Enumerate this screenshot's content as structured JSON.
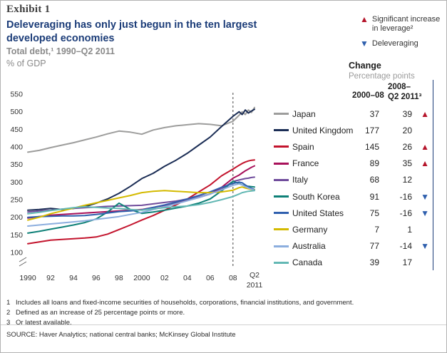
{
  "header": {
    "exhibit": "Exhibit 1",
    "title": "Deleveraging has only just begun in the ten largest developed economies",
    "subtitle1": "Total debt,¹ 1990–Q2 2011",
    "subtitle2": "% of GDP"
  },
  "marker_legend": {
    "increase": "Significant increase in leverage²",
    "deleveraging": "Deleveraging",
    "increase_color": "#b5152b",
    "deleveraging_color": "#2e5fad"
  },
  "change_table": {
    "title": "Change",
    "subtitle": "Percentage points",
    "col1": "2000–08",
    "col2_line1": "2008–",
    "col2_line2": "Q2 2011³",
    "rows": [
      {
        "country": "Japan",
        "change_2000_08": "37",
        "change_2008_q2_2011": "39",
        "marker": "up"
      },
      {
        "country": "United Kingdom",
        "change_2000_08": "177",
        "change_2008_q2_2011": "20",
        "marker": ""
      },
      {
        "country": "Spain",
        "change_2000_08": "145",
        "change_2008_q2_2011": "26",
        "marker": "up"
      },
      {
        "country": "France",
        "change_2000_08": "89",
        "change_2008_q2_2011": "35",
        "marker": "up"
      },
      {
        "country": "Italy",
        "change_2000_08": "68",
        "change_2008_q2_2011": "12",
        "marker": ""
      },
      {
        "country": "South Korea",
        "change_2000_08": "91",
        "change_2008_q2_2011": "-16",
        "marker": "down"
      },
      {
        "country": "United States",
        "change_2000_08": "75",
        "change_2008_q2_2011": "-16",
        "marker": "down"
      },
      {
        "country": "Germany",
        "change_2000_08": "7",
        "change_2008_q2_2011": "1",
        "marker": ""
      },
      {
        "country": "Australia",
        "change_2000_08": "77",
        "change_2008_q2_2011": "-14",
        "marker": "down"
      },
      {
        "country": "Canada",
        "change_2000_08": "39",
        "change_2008_q2_2011": "17",
        "marker": ""
      }
    ]
  },
  "chart_data": {
    "type": "line",
    "title": "Total debt, 1990–Q2 2011, % of GDP",
    "ylabel": "% of GDP",
    "ylim": [
      100,
      550
    ],
    "y_ticks": [
      100,
      150,
      200,
      250,
      300,
      350,
      400,
      450,
      500,
      550
    ],
    "axis_break_low": true,
    "grid": false,
    "dashed_line_x": 2008,
    "xlim": [
      1990,
      2011.5
    ],
    "x": [
      1990,
      1991,
      1992,
      1993,
      1994,
      1995,
      1996,
      1997,
      1998,
      1999,
      2000,
      2001,
      2002,
      2003,
      2004,
      2005,
      2006,
      2007,
      2008,
      2009,
      2009.5,
      2010,
      2010.5,
      2011,
      2011.5
    ],
    "x_ticks": [
      {
        "x": 1990,
        "label": "1990"
      },
      {
        "x": 1992,
        "label": "92"
      },
      {
        "x": 1994,
        "label": "94"
      },
      {
        "x": 1996,
        "label": "96"
      },
      {
        "x": 1998,
        "label": "98"
      },
      {
        "x": 2000,
        "label": "2000"
      },
      {
        "x": 2002,
        "label": "02"
      },
      {
        "x": 2004,
        "label": "04"
      },
      {
        "x": 2006,
        "label": "06"
      },
      {
        "x": 2008,
        "label": "08"
      },
      {
        "x": 2011.5,
        "label": "Q2",
        "label2": "2011"
      }
    ],
    "series": [
      {
        "name": "Japan",
        "color": "#9d9d9c",
        "values": [
          385,
          390,
          398,
          405,
          412,
          420,
          428,
          437,
          445,
          442,
          436,
          448,
          455,
          460,
          463,
          466,
          464,
          460,
          473,
          490,
          500,
          492,
          505,
          498,
          512
        ]
      },
      {
        "name": "United Kingdom",
        "color": "#1b2d55",
        "values": [
          220,
          222,
          225,
          222,
          225,
          230,
          240,
          252,
          268,
          288,
          310,
          325,
          345,
          362,
          382,
          405,
          428,
          458,
          487,
          500,
          492,
          505,
          496,
          502,
          507
        ]
      },
      {
        "name": "Spain",
        "color": "#c3142d",
        "values": [
          125,
          130,
          135,
          137,
          139,
          141,
          144,
          152,
          165,
          178,
          192,
          205,
          220,
          235,
          252,
          272,
          292,
          318,
          337,
          348,
          353,
          357,
          360,
          362,
          363
        ]
      },
      {
        "name": "France",
        "color": "#a8115a",
        "values": [
          198,
          202,
          206,
          208,
          210,
          212,
          214,
          216,
          218,
          220,
          222,
          228,
          234,
          240,
          248,
          256,
          266,
          285,
          311,
          320,
          326,
          332,
          337,
          342,
          346
        ]
      },
      {
        "name": "Italy",
        "color": "#6f4b9b",
        "values": [
          215,
          218,
          220,
          223,
          225,
          227,
          229,
          231,
          232,
          233,
          234,
          238,
          242,
          246,
          252,
          258,
          266,
          280,
          302,
          306,
          308,
          310,
          311,
          313,
          314
        ]
      },
      {
        "name": "South Korea",
        "color": "#0e8077",
        "values": [
          155,
          160,
          166,
          172,
          178,
          185,
          195,
          215,
          240,
          222,
          211,
          215,
          220,
          226,
          232,
          240,
          252,
          275,
          302,
          296,
          292,
          290,
          288,
          287,
          286
        ]
      },
      {
        "name": "United States",
        "color": "#2f5fae",
        "values": [
          200,
          202,
          203,
          204,
          204,
          205,
          208,
          212,
          216,
          218,
          221,
          228,
          235,
          243,
          252,
          262,
          272,
          285,
          296,
          300,
          298,
          292,
          286,
          282,
          279
        ]
      },
      {
        "name": "Germany",
        "color": "#d4ba00",
        "values": [
          192,
          200,
          210,
          218,
          226,
          234,
          241,
          248,
          255,
          262,
          270,
          274,
          276,
          274,
          272,
          270,
          270,
          272,
          277,
          284,
          286,
          283,
          281,
          279,
          278
        ]
      },
      {
        "name": "Australia",
        "color": "#8caede",
        "values": [
          175,
          178,
          181,
          184,
          187,
          190,
          194,
          198,
          202,
          208,
          214,
          222,
          230,
          238,
          247,
          256,
          266,
          278,
          291,
          295,
          292,
          287,
          283,
          280,
          277
        ]
      },
      {
        "name": "Canada",
        "color": "#63b8b4",
        "values": [
          210,
          214,
          219,
          223,
          227,
          230,
          228,
          226,
          225,
          222,
          220,
          224,
          227,
          230,
          232,
          236,
          242,
          250,
          259,
          266,
          270,
          272,
          274,
          275,
          276
        ]
      }
    ]
  },
  "footnotes": [
    {
      "num": "1",
      "text": "Includes all loans and fixed-income securities of households, corporations, financial institutions, and government."
    },
    {
      "num": "2",
      "text": "Defined as an increase of 25 percentage points or more."
    },
    {
      "num": "3",
      "text": "Or latest available."
    }
  ],
  "source": "SOURCE: Haver Analytics; national central banks; McKinsey Global Institute"
}
